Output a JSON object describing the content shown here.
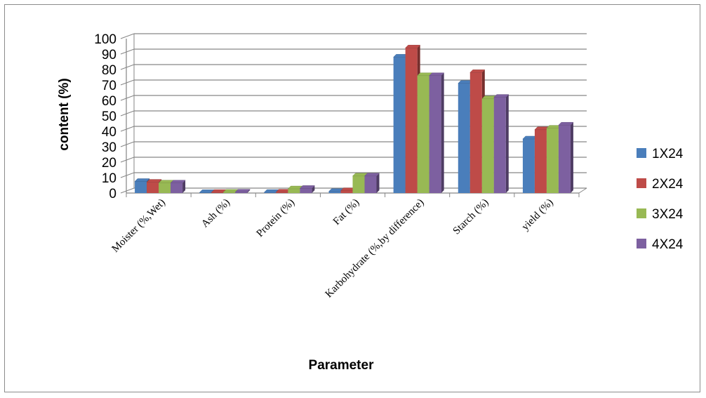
{
  "chart_data": {
    "type": "bar",
    "title": "",
    "xlabel": "Parameter",
    "ylabel": "content (%)",
    "ylim": [
      0,
      100
    ],
    "yticks": [
      "0",
      "10",
      "20",
      "30",
      "40",
      "50",
      "60",
      "70",
      "80",
      "90",
      "100"
    ],
    "grid": true,
    "legend_position": "right",
    "categories": [
      "Moister (%,Wet)",
      "Ash (%)",
      "Protein (%)",
      "Fat (%)",
      "Karbohydrate (%,by difference)",
      "Starch (%)",
      "yield (%)"
    ],
    "series": [
      {
        "name": "1X24",
        "color": "#4a7ebb",
        "values": [
          7.5,
          0.3,
          0.4,
          1,
          88,
          71,
          35
        ]
      },
      {
        "name": "2X24",
        "color": "#be4b48",
        "values": [
          7,
          0.4,
          0.6,
          1.5,
          94,
          78,
          41
        ]
      },
      {
        "name": "3X24",
        "color": "#98b954",
        "values": [
          6.5,
          0.5,
          2.7,
          11,
          76,
          61,
          42
        ]
      },
      {
        "name": "4X24",
        "color": "#7d60a0",
        "values": [
          6.5,
          0.6,
          3,
          11,
          76,
          62,
          44
        ]
      }
    ]
  }
}
